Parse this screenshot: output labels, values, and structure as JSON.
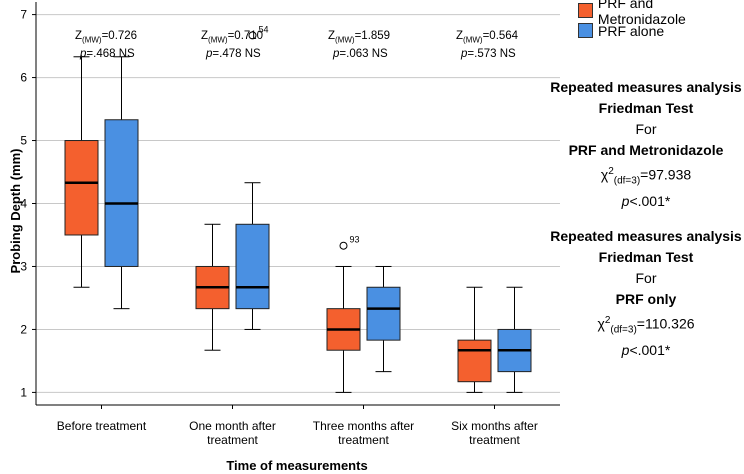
{
  "chart_data": {
    "type": "boxplot",
    "xlabel": "Time of measurements",
    "ylabel": "Probing Depth (mm)",
    "ylim": [
      0.8,
      7.2
    ],
    "yticks": [
      "1",
      "2",
      "3",
      "4",
      "5",
      "6",
      "7"
    ],
    "ytick_values": [
      1,
      2,
      3,
      4,
      5,
      6,
      7
    ],
    "grid": true,
    "legend_position": "top-right",
    "categories": [
      [
        "Before treatment"
      ],
      [
        "One month after",
        "treatment"
      ],
      [
        "Three months after",
        "treatment"
      ],
      [
        "Six months after",
        "treatment"
      ]
    ],
    "series": [
      {
        "name": "PRF and Metronidazole",
        "color": "#F4602E",
        "boxes": [
          {
            "min": 2.67,
            "q1": 3.5,
            "median": 4.33,
            "q3": 5.0,
            "max": 6.33
          },
          {
            "min": 1.67,
            "q1": 2.33,
            "median": 2.67,
            "q3": 3.0,
            "max": 3.67
          },
          {
            "min": 1.0,
            "q1": 1.67,
            "median": 2.0,
            "q3": 2.33,
            "max": 3.0
          },
          {
            "min": 1.0,
            "q1": 1.17,
            "median": 1.67,
            "q3": 1.83,
            "max": 2.67
          }
        ]
      },
      {
        "name": "PRF alone",
        "color": "#4A90E2",
        "boxes": [
          {
            "min": 2.33,
            "q1": 3.0,
            "median": 4.0,
            "q3": 5.33,
            "max": 6.33
          },
          {
            "min": 2.0,
            "q1": 2.33,
            "median": 2.67,
            "q3": 3.67,
            "max": 4.33
          },
          {
            "min": 1.33,
            "q1": 1.83,
            "median": 2.33,
            "q3": 2.67,
            "max": 3.0
          },
          {
            "min": 1.0,
            "q1": 1.33,
            "median": 1.67,
            "q3": 2.0,
            "max": 2.67
          }
        ]
      }
    ],
    "outliers": [
      {
        "series": 0,
        "group": 2,
        "value": 3.33,
        "label": "93"
      },
      {
        "series": 1,
        "group": 1,
        "value": 6.67,
        "label": "54"
      }
    ]
  },
  "comparisons": [
    {
      "z_label": "Z",
      "z_sub": "(MW)",
      "z_value": "=0.726",
      "p_label": "p",
      "p_value": "=.468 NS"
    },
    {
      "z_label": "Z",
      "z_sub": "(MW)",
      "z_value": "=0.710",
      "p_label": "p",
      "p_value": "=.478 NS"
    },
    {
      "z_label": "Z",
      "z_sub": "(MW)",
      "z_value": "=1.859",
      "p_label": "p",
      "p_value": "=.063 NS"
    },
    {
      "z_label": "Z",
      "z_sub": "(MW)",
      "z_value": "=0.564",
      "p_label": "p",
      "p_value": "=.573 NS"
    }
  ],
  "stats": [
    {
      "line1": "Repeated measures analysis",
      "line2": "Friedman Test",
      "line3": "For",
      "group": "PRF and Metronidazole",
      "chi": "χ",
      "chi_sup": "2",
      "chi_sub": "(df=3)",
      "chi_value": "=97.938",
      "p_label": "p",
      "p_value": "<.001*"
    },
    {
      "line1": "Repeated measures analysis",
      "line2": "Friedman Test",
      "line3": "For",
      "group": "PRF only",
      "chi": "χ",
      "chi_sup": "2",
      "chi_sub": "(df=3)",
      "chi_value": "=110.326",
      "p_label": "p",
      "p_value": "<.001*"
    }
  ]
}
